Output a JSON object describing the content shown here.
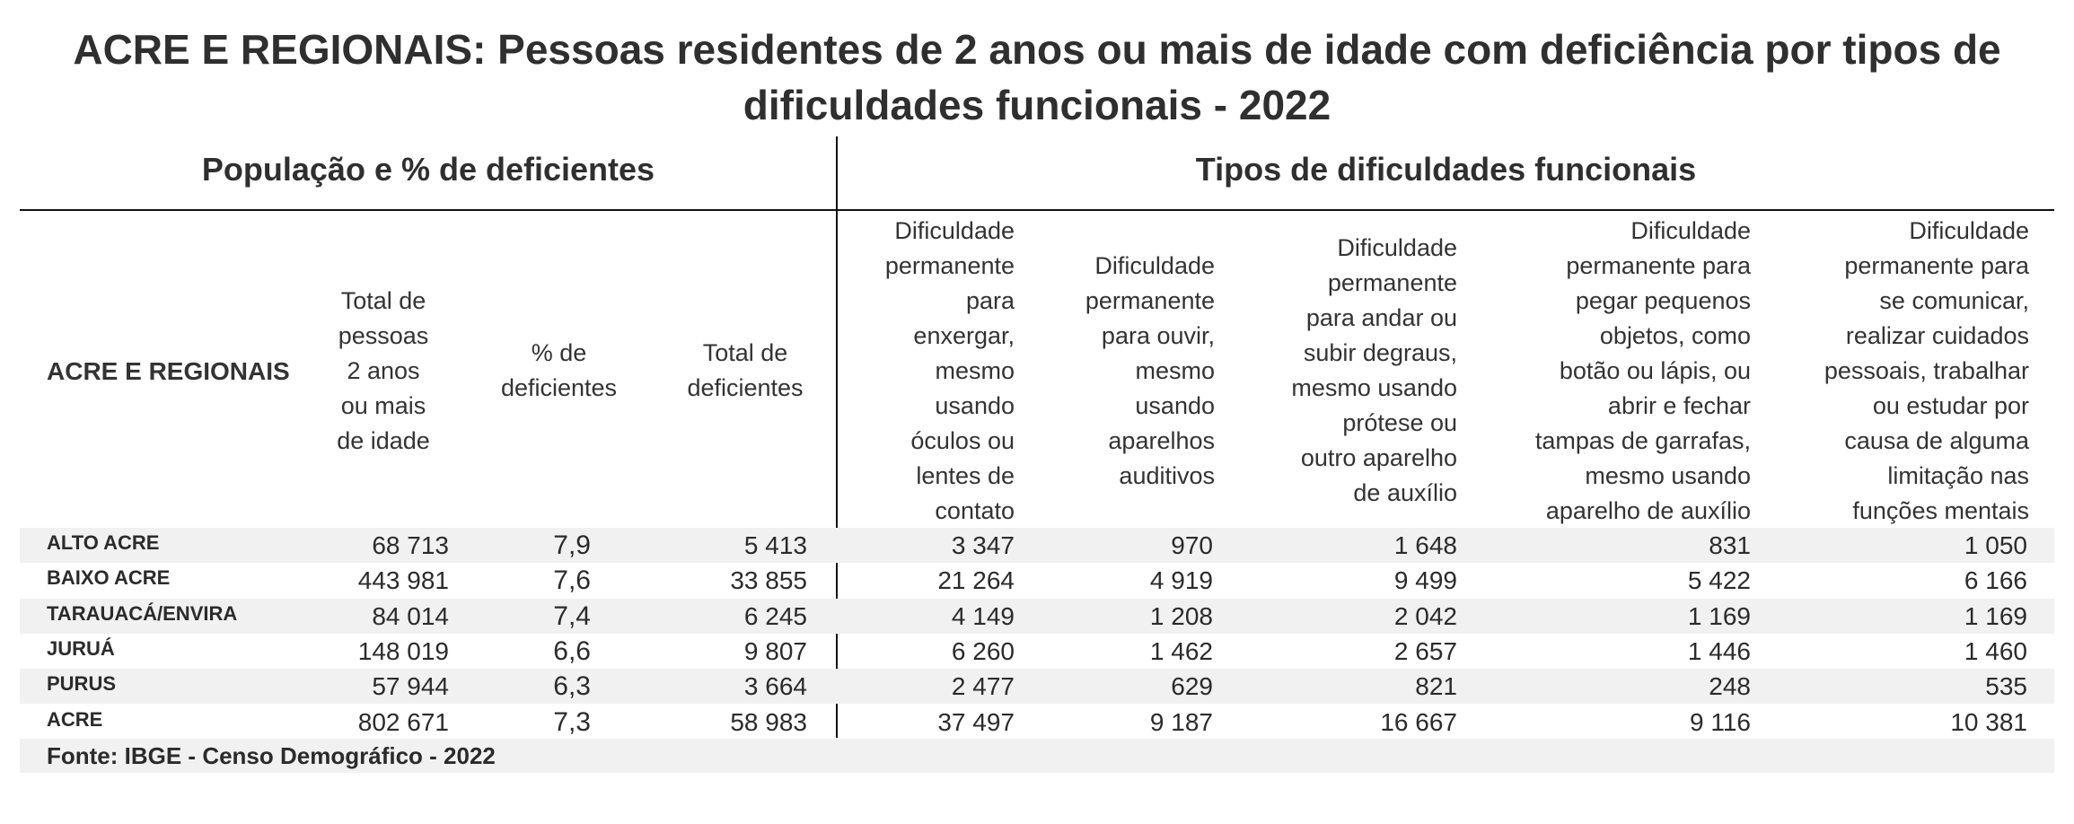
{
  "title_line1": "ACRE E REGIONAIS: Pessoas residentes de 2 anos ou mais de idade com deficiência por tipos de",
  "title_line2": "dificuldades funcionais - 2022",
  "group_headers": {
    "population": "População e % de deficientes",
    "types": "Tipos de dificuldades funcionais"
  },
  "columns": {
    "region": [
      "ACRE E REGIONAIS"
    ],
    "total_pop": [
      "Total de",
      "pessoas",
      "2 anos",
      "ou mais",
      "de idade"
    ],
    "pct_def": [
      "% de",
      "deficientes"
    ],
    "total_def": [
      "Total de",
      "deficientes"
    ],
    "see": [
      "Dificuldade",
      "permanente",
      "para",
      "enxergar,",
      "mesmo",
      "usando",
      "óculos ou",
      "lentes de",
      "contato"
    ],
    "hear": [
      "Dificuldade",
      "permanente",
      "para ouvir,",
      "mesmo",
      "usando",
      "aparelhos",
      "auditivos"
    ],
    "walk": [
      "Dificuldade",
      "permanente",
      "para andar ou",
      "subir degraus,",
      "mesmo usando",
      "prótese ou",
      "outro aparelho",
      "de auxílio"
    ],
    "grab": [
      "Dificuldade",
      "permanente para",
      "pegar pequenos",
      "objetos, como",
      "botão ou lápis, ou",
      "abrir e fechar",
      "tampas de garrafas,",
      "mesmo usando",
      "aparelho de auxílio"
    ],
    "communicate": [
      "Dificuldade",
      "permanente para",
      "se comunicar,",
      "realizar cuidados",
      "pessoais, trabalhar",
      "ou estudar por",
      "causa de alguma",
      "limitação nas",
      "funções mentais"
    ]
  },
  "rows": [
    {
      "name": "ALTO ACRE",
      "total_pop": "68 713",
      "pct": "7,9",
      "total_def": "5 413",
      "see": "3 347",
      "hear": "970",
      "walk": "1 648",
      "grab": "831",
      "communicate": "1 050"
    },
    {
      "name": "BAIXO ACRE",
      "total_pop": "443 981",
      "pct": "7,6",
      "total_def": "33 855",
      "see": "21 264",
      "hear": "4 919",
      "walk": "9 499",
      "grab": "5 422",
      "communicate": "6 166"
    },
    {
      "name": "TARAUACÁ/ENVIRA",
      "total_pop": "84 014",
      "pct": "7,4",
      "total_def": "6 245",
      "see": "4 149",
      "hear": "1 208",
      "walk": "2 042",
      "grab": "1 169",
      "communicate": "1 169"
    },
    {
      "name": "JURUÁ",
      "total_pop": "148 019",
      "pct": "6,6",
      "total_def": "9 807",
      "see": "6 260",
      "hear": "1 462",
      "walk": "2 657",
      "grab": "1 446",
      "communicate": "1 460"
    },
    {
      "name": "PURUS",
      "total_pop": "57 944",
      "pct": "6,3",
      "total_def": "3 664",
      "see": "2 477",
      "hear": "629",
      "walk": "821",
      "grab": "248",
      "communicate": "535"
    },
    {
      "name": "ACRE",
      "total_pop": "802 671",
      "pct": "7,3",
      "total_def": "58 983",
      "see": "37 497",
      "hear": "9 187",
      "walk": "16 667",
      "grab": "9 116",
      "communicate": "10 381"
    }
  ],
  "footer": "Fonte: IBGE - Censo Demográfico - 2022"
}
